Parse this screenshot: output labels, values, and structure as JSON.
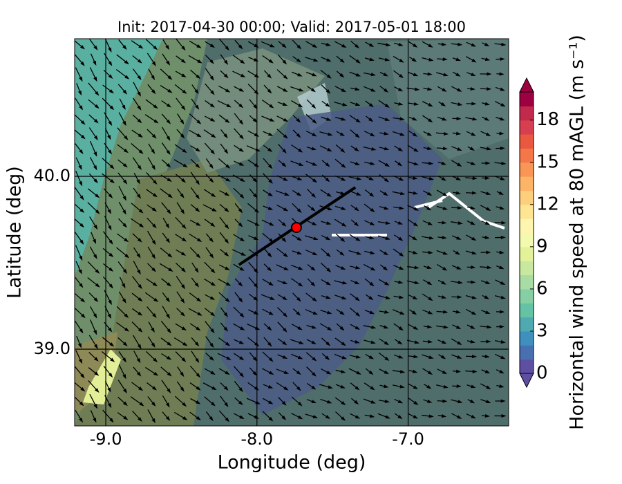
{
  "chart_data": {
    "type": "wind-map",
    "title": "Init: 2017-04-30 00:00; Valid: 2017-05-01 18:00",
    "xlabel": "Longitude (deg)",
    "ylabel": "Latitude (deg)",
    "xlim": [
      -9.206,
      -6.335
    ],
    "ylim": [
      38.556,
      40.796
    ],
    "xticks": [
      {
        "value": -9,
        "label": "-9.0"
      },
      {
        "value": -8,
        "label": "-8.0"
      },
      {
        "value": -7,
        "label": "-7.0"
      }
    ],
    "yticks": [
      {
        "value": 39,
        "label": "39.0"
      },
      {
        "value": 40,
        "label": "40.0"
      }
    ],
    "grid": true,
    "colorbar": {
      "label": "Horizontal wind speed at 80 mAGL (m s⁻¹)",
      "lim": [
        0,
        20
      ],
      "ticks": [
        0,
        3,
        6,
        9,
        12,
        15,
        18
      ],
      "extend": "both",
      "colors": [
        "#5e4fa2",
        "#486fb0",
        "#3f8fbf",
        "#4fa9b0",
        "#66c2a5",
        "#86cfa5",
        "#a8dca4",
        "#c7e89e",
        "#e2f299",
        "#f3faad",
        "#fef5af",
        "#fee593",
        "#fdcf7c",
        "#fdb466",
        "#f99555",
        "#f57748",
        "#e8593f",
        "#d73f50",
        "#c12a4b",
        "#9e0142"
      ]
    },
    "transect": {
      "lon": [
        -8.119,
        -7.349
      ],
      "lat": [
        39.488,
        39.936
      ],
      "color": "#000000"
    },
    "site": {
      "lon": -7.739,
      "lat": 39.704,
      "color": "#ff0000"
    }
  }
}
